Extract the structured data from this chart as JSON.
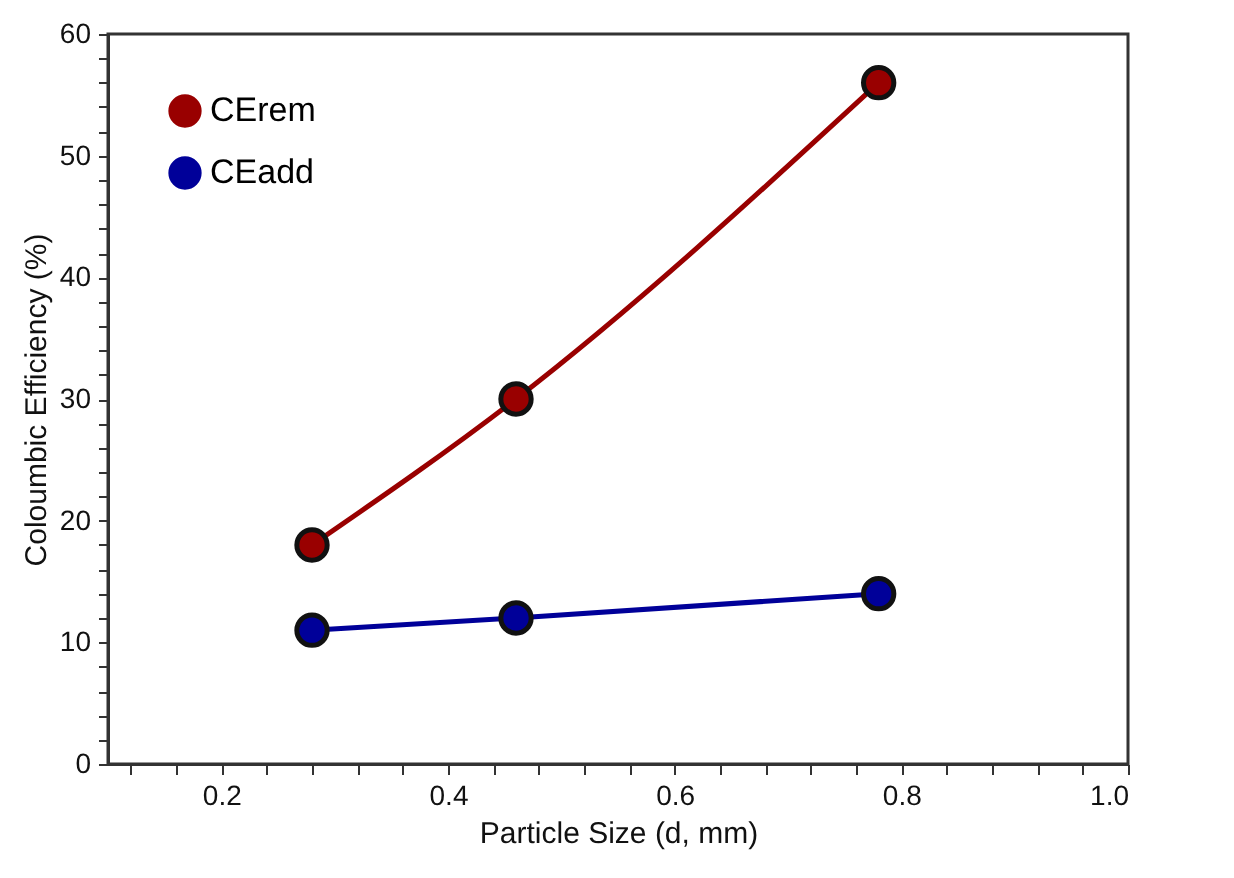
{
  "chart_data": {
    "type": "line",
    "xlabel": "Particle Size (d, mm)",
    "ylabel": "Coloumbic Efficiency (%)",
    "x": [
      0.28,
      0.46,
      0.78
    ],
    "series": [
      {
        "name": "CErem",
        "color": "#990000",
        "values": [
          18,
          30,
          56
        ]
      },
      {
        "name": "CEadd",
        "color": "#000099",
        "values": [
          11,
          12,
          14
        ]
      }
    ],
    "xlim": [
      0.1,
      1.0
    ],
    "xticks": [
      {
        "value": 0.12,
        "label": null
      },
      {
        "value": 0.16,
        "label": null
      },
      0.2,
      {
        "value": 0.24,
        "label": null
      },
      {
        "value": 0.28,
        "label": null
      },
      {
        "value": 0.32,
        "label": null
      },
      {
        "value": 0.36,
        "label": null
      },
      0.4,
      {
        "value": 0.44,
        "label": null
      },
      {
        "value": 0.48,
        "label": null
      },
      {
        "value": 0.52,
        "label": null
      },
      {
        "value": 0.56,
        "label": null
      },
      0.6,
      {
        "value": 0.64,
        "label": null
      },
      {
        "value": 0.68,
        "label": null
      },
      {
        "value": 0.72,
        "label": null
      },
      {
        "value": 0.76,
        "label": null
      },
      0.8,
      {
        "value": 0.84,
        "label": null
      },
      {
        "value": 0.88,
        "label": null
      },
      {
        "value": 0.92,
        "label": null
      },
      {
        "value": 0.96,
        "label": null
      },
      {
        "value": 1.0,
        "label": "1.0"
      }
    ],
    "ylim": [
      0,
      60
    ],
    "yticks": [
      0,
      {
        "value": 2,
        "label": null
      },
      {
        "value": 4,
        "label": null
      },
      {
        "value": 6,
        "label": null
      },
      {
        "value": 8,
        "label": null
      },
      10,
      {
        "value": 12,
        "label": null
      },
      {
        "value": 14,
        "label": null
      },
      {
        "value": 16,
        "label": null
      },
      {
        "value": 18,
        "label": null
      },
      20,
      {
        "value": 22,
        "label": null
      },
      {
        "value": 24,
        "label": null
      },
      {
        "value": 26,
        "label": null
      },
      {
        "value": 28,
        "label": null
      },
      30,
      {
        "value": 32,
        "label": null
      },
      {
        "value": 34,
        "label": null
      },
      {
        "value": 36,
        "label": null
      },
      {
        "value": 38,
        "label": null
      },
      40,
      {
        "value": 42,
        "label": null
      },
      {
        "value": 44,
        "label": null
      },
      {
        "value": 46,
        "label": null
      },
      {
        "value": 48,
        "label": null
      },
      50,
      {
        "value": 52,
        "label": null
      },
      {
        "value": 54,
        "label": null
      },
      {
        "value": 56,
        "label": null
      },
      {
        "value": 58,
        "label": null
      },
      60
    ],
    "grid": false,
    "legend": "top left",
    "marker": "circle",
    "line_style": "solid"
  }
}
